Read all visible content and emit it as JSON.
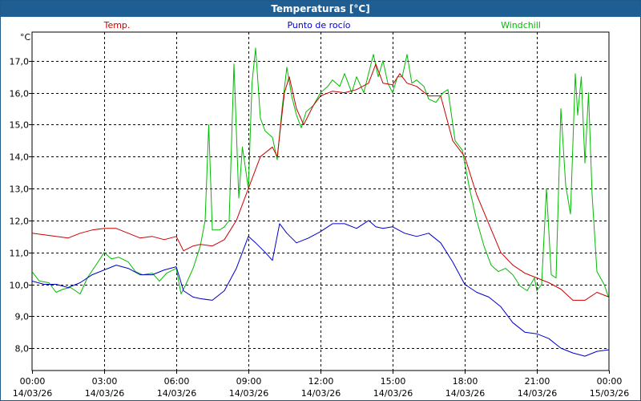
{
  "window": {
    "title": "Temperaturas [°C]"
  },
  "colors": {
    "temp": "#cc0000",
    "dew": "#0000cc",
    "windchill": "#00bb00",
    "titlebar": "#1f5e93",
    "grid": "#000000"
  },
  "chart_data": {
    "type": "line",
    "title": "Temperaturas [°C]",
    "ylabel": "°C",
    "xlabel": "",
    "ylim": [
      7.3,
      17.9
    ],
    "xlim_hours": [
      0,
      24
    ],
    "grid": true,
    "legend_placement": "top",
    "y_ticks": [
      "8,0",
      "9,0",
      "10,0",
      "11,0",
      "12,0",
      "13,0",
      "14,0",
      "15,0",
      "16,0",
      "17,0"
    ],
    "x_ticks": [
      {
        "time": "00:00",
        "date": "14/03/26"
      },
      {
        "time": "03:00",
        "date": "14/03/26"
      },
      {
        "time": "06:00",
        "date": "14/03/26"
      },
      {
        "time": "09:00",
        "date": "14/03/26"
      },
      {
        "time": "12:00",
        "date": "14/03/26"
      },
      {
        "time": "15:00",
        "date": "14/03/26"
      },
      {
        "time": "18:00",
        "date": "14/03/26"
      },
      {
        "time": "21:00",
        "date": "14/03/26"
      },
      {
        "time": "00:00",
        "date": "15/03/26"
      }
    ],
    "series": [
      {
        "name": "Temp.",
        "color": "#cc0000",
        "points": [
          [
            0,
            11.6
          ],
          [
            0.5,
            11.55
          ],
          [
            1,
            11.5
          ],
          [
            1.5,
            11.45
          ],
          [
            2,
            11.6
          ],
          [
            2.5,
            11.7
          ],
          [
            3,
            11.75
          ],
          [
            3.5,
            11.75
          ],
          [
            4,
            11.6
          ],
          [
            4.5,
            11.45
          ],
          [
            5,
            11.5
          ],
          [
            5.5,
            11.4
          ],
          [
            6,
            11.5
          ],
          [
            6.3,
            11.05
          ],
          [
            6.7,
            11.2
          ],
          [
            7,
            11.25
          ],
          [
            7.5,
            11.2
          ],
          [
            8,
            11.4
          ],
          [
            8.5,
            12.0
          ],
          [
            9,
            13.0
          ],
          [
            9.5,
            14.0
          ],
          [
            10,
            14.3
          ],
          [
            10.2,
            14.0
          ],
          [
            10.5,
            16.0
          ],
          [
            10.7,
            16.5
          ],
          [
            11,
            15.5
          ],
          [
            11.3,
            15.0
          ],
          [
            11.7,
            15.6
          ],
          [
            12,
            15.9
          ],
          [
            12.5,
            16.05
          ],
          [
            13,
            16.0
          ],
          [
            13.5,
            16.1
          ],
          [
            14,
            16.3
          ],
          [
            14.3,
            16.9
          ],
          [
            14.6,
            16.3
          ],
          [
            15,
            16.25
          ],
          [
            15.3,
            16.6
          ],
          [
            15.6,
            16.3
          ],
          [
            16,
            16.2
          ],
          [
            16.5,
            15.9
          ],
          [
            17,
            15.9
          ],
          [
            17.5,
            14.5
          ],
          [
            18,
            14.0
          ],
          [
            18.5,
            12.8
          ],
          [
            19,
            11.9
          ],
          [
            19.5,
            11.0
          ],
          [
            20,
            10.6
          ],
          [
            20.5,
            10.35
          ],
          [
            21,
            10.2
          ],
          [
            21.5,
            10.05
          ],
          [
            22,
            9.85
          ],
          [
            22.5,
            9.5
          ],
          [
            23,
            9.5
          ],
          [
            23.5,
            9.75
          ],
          [
            24,
            9.6
          ]
        ]
      },
      {
        "name": "Punto de rocío",
        "color": "#0000cc",
        "points": [
          [
            0,
            10.1
          ],
          [
            0.5,
            10.0
          ],
          [
            1,
            10.0
          ],
          [
            1.5,
            9.9
          ],
          [
            2,
            10.05
          ],
          [
            2.5,
            10.3
          ],
          [
            3,
            10.45
          ],
          [
            3.5,
            10.6
          ],
          [
            4,
            10.5
          ],
          [
            4.5,
            10.3
          ],
          [
            5,
            10.3
          ],
          [
            5.5,
            10.45
          ],
          [
            6,
            10.55
          ],
          [
            6.3,
            9.8
          ],
          [
            6.7,
            9.6
          ],
          [
            7,
            9.55
          ],
          [
            7.5,
            9.5
          ],
          [
            8,
            9.8
          ],
          [
            8.5,
            10.5
          ],
          [
            9,
            11.5
          ],
          [
            9.3,
            11.3
          ],
          [
            9.7,
            11.0
          ],
          [
            10,
            10.75
          ],
          [
            10.3,
            11.9
          ],
          [
            10.6,
            11.6
          ],
          [
            11,
            11.3
          ],
          [
            11.5,
            11.45
          ],
          [
            12,
            11.65
          ],
          [
            12.5,
            11.9
          ],
          [
            13,
            11.9
          ],
          [
            13.5,
            11.75
          ],
          [
            14,
            12.0
          ],
          [
            14.3,
            11.8
          ],
          [
            14.6,
            11.75
          ],
          [
            15,
            11.8
          ],
          [
            15.5,
            11.6
          ],
          [
            16,
            11.5
          ],
          [
            16.5,
            11.6
          ],
          [
            17,
            11.3
          ],
          [
            17.5,
            10.7
          ],
          [
            18,
            10.0
          ],
          [
            18.5,
            9.75
          ],
          [
            19,
            9.6
          ],
          [
            19.5,
            9.3
          ],
          [
            20,
            8.8
          ],
          [
            20.5,
            8.5
          ],
          [
            21,
            8.45
          ],
          [
            21.5,
            8.3
          ],
          [
            22,
            8.0
          ],
          [
            22.5,
            7.85
          ],
          [
            23,
            7.75
          ],
          [
            23.5,
            7.9
          ],
          [
            24,
            7.95
          ]
        ]
      },
      {
        "name": "Windchill",
        "color": "#00bb00",
        "points": [
          [
            0,
            10.4
          ],
          [
            0.3,
            10.1
          ],
          [
            0.7,
            10.05
          ],
          [
            1,
            9.75
          ],
          [
            1.3,
            9.85
          ],
          [
            1.6,
            9.9
          ],
          [
            2,
            9.7
          ],
          [
            2.3,
            10.2
          ],
          [
            2.7,
            10.65
          ],
          [
            3,
            11.0
          ],
          [
            3.3,
            10.8
          ],
          [
            3.6,
            10.85
          ],
          [
            4,
            10.7
          ],
          [
            4.3,
            10.4
          ],
          [
            4.6,
            10.3
          ],
          [
            5,
            10.35
          ],
          [
            5.3,
            10.1
          ],
          [
            5.6,
            10.35
          ],
          [
            6,
            10.5
          ],
          [
            6.2,
            9.7
          ],
          [
            6.4,
            10.0
          ],
          [
            6.7,
            10.5
          ],
          [
            7,
            11.2
          ],
          [
            7.2,
            12.0
          ],
          [
            7.35,
            15.0
          ],
          [
            7.5,
            11.7
          ],
          [
            7.8,
            11.7
          ],
          [
            8,
            11.8
          ],
          [
            8.2,
            12.0
          ],
          [
            8.4,
            16.9
          ],
          [
            8.6,
            12.7
          ],
          [
            8.75,
            14.3
          ],
          [
            9,
            13.0
          ],
          [
            9.15,
            16.3
          ],
          [
            9.3,
            17.4
          ],
          [
            9.5,
            15.2
          ],
          [
            9.7,
            14.8
          ],
          [
            10,
            14.6
          ],
          [
            10.2,
            13.9
          ],
          [
            10.4,
            15.5
          ],
          [
            10.6,
            16.8
          ],
          [
            10.8,
            15.9
          ],
          [
            11,
            15.3
          ],
          [
            11.2,
            14.9
          ],
          [
            11.4,
            15.4
          ],
          [
            11.7,
            15.6
          ],
          [
            12,
            16.0
          ],
          [
            12.3,
            16.2
          ],
          [
            12.5,
            16.4
          ],
          [
            12.8,
            16.2
          ],
          [
            13,
            16.6
          ],
          [
            13.3,
            16.0
          ],
          [
            13.5,
            16.5
          ],
          [
            13.8,
            16.0
          ],
          [
            14,
            16.6
          ],
          [
            14.2,
            17.2
          ],
          [
            14.4,
            16.5
          ],
          [
            14.6,
            17.0
          ],
          [
            14.8,
            16.3
          ],
          [
            15,
            16.0
          ],
          [
            15.2,
            16.5
          ],
          [
            15.4,
            16.5
          ],
          [
            15.6,
            17.2
          ],
          [
            15.8,
            16.3
          ],
          [
            16,
            16.4
          ],
          [
            16.3,
            16.2
          ],
          [
            16.5,
            15.8
          ],
          [
            16.8,
            15.7
          ],
          [
            17.1,
            16.0
          ],
          [
            17.3,
            16.1
          ],
          [
            17.6,
            14.5
          ],
          [
            17.9,
            14.2
          ],
          [
            18.2,
            13.0
          ],
          [
            18.5,
            12.0
          ],
          [
            18.8,
            11.2
          ],
          [
            19.1,
            10.6
          ],
          [
            19.4,
            10.4
          ],
          [
            19.7,
            10.5
          ],
          [
            20,
            10.3
          ],
          [
            20.3,
            9.95
          ],
          [
            20.6,
            9.8
          ],
          [
            20.9,
            10.2
          ],
          [
            21,
            9.8
          ],
          [
            21.2,
            10.0
          ],
          [
            21.4,
            13.0
          ],
          [
            21.6,
            10.3
          ],
          [
            21.8,
            10.2
          ],
          [
            22,
            15.5
          ],
          [
            22.2,
            13.1
          ],
          [
            22.4,
            12.2
          ],
          [
            22.6,
            16.6
          ],
          [
            22.7,
            15.3
          ],
          [
            22.85,
            16.5
          ],
          [
            23,
            13.8
          ],
          [
            23.15,
            16.0
          ],
          [
            23.3,
            12.8
          ],
          [
            23.5,
            10.4
          ],
          [
            23.8,
            10.0
          ],
          [
            24,
            9.55
          ]
        ]
      }
    ]
  }
}
